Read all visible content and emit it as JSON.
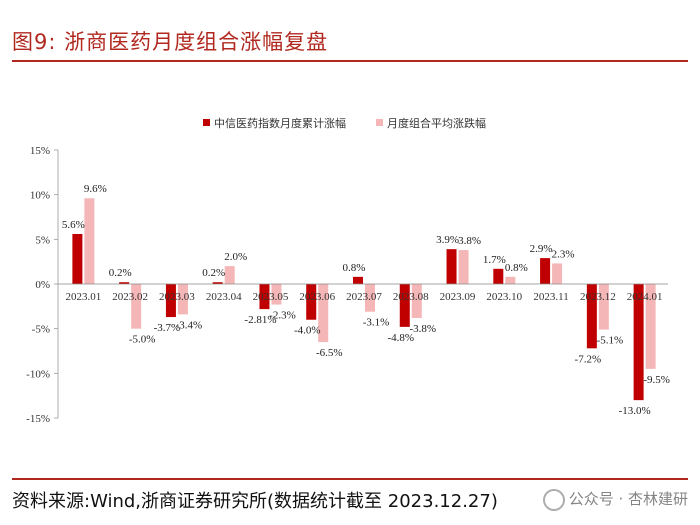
{
  "header": {
    "title": "图9:  浙商医药月度组合涨幅复盘"
  },
  "footer": {
    "source": "资料来源:Wind,浙商证券研究所(数据统计截至 2023.12.27)",
    "watermark": "公众号 · 杏林建研"
  },
  "colors": {
    "series1": "#c00000",
    "series2": "#f4b6b6",
    "accent": "#b1281f"
  },
  "chart_data": {
    "type": "bar",
    "title": "浙商医药月度组合涨幅复盘",
    "categories": [
      "2023.01",
      "2023.02",
      "2023.03",
      "2023.04",
      "2023.05",
      "2023.06",
      "2023.07",
      "2023.08",
      "2023.09",
      "2023.10",
      "2023.11",
      "2023.12",
      "2024.01"
    ],
    "series": [
      {
        "name": "中信医药指数月度累计涨幅",
        "values": [
          5.6,
          0.2,
          -3.7,
          0.2,
          -2.81,
          -4.0,
          0.8,
          -4.8,
          3.9,
          1.7,
          2.9,
          -7.2,
          -13.0
        ]
      },
      {
        "name": "月度组合平均涨跌幅",
        "values": [
          9.6,
          -5.0,
          -3.4,
          2.0,
          -2.3,
          -6.5,
          -3.1,
          -3.8,
          3.8,
          0.8,
          2.3,
          -5.1,
          -9.5
        ]
      }
    ],
    "labels1": [
      "5.6%",
      "0.2%",
      "-3.7%",
      "0.2%",
      "-2.81%",
      "-4.0%",
      "0.8%",
      "-4.8%",
      "3.9%",
      "1.7%",
      "2.9%",
      "-7.2%",
      "-13.0%"
    ],
    "labels2": [
      "9.6%",
      "-5.0%",
      "-3.4%",
      "2.0%",
      "-2.3%",
      "-6.5%",
      "-3.1%",
      "-3.8%",
      "3.8%",
      "0.8%",
      "2.3%",
      "-5.1%",
      "-9.5%"
    ],
    "yticks": [
      "15%",
      "10%",
      "5%",
      "0%",
      "-5%",
      "-10%",
      "-15%"
    ],
    "ylim": [
      -15,
      15
    ],
    "legend_position": "top-center",
    "grid": false
  }
}
